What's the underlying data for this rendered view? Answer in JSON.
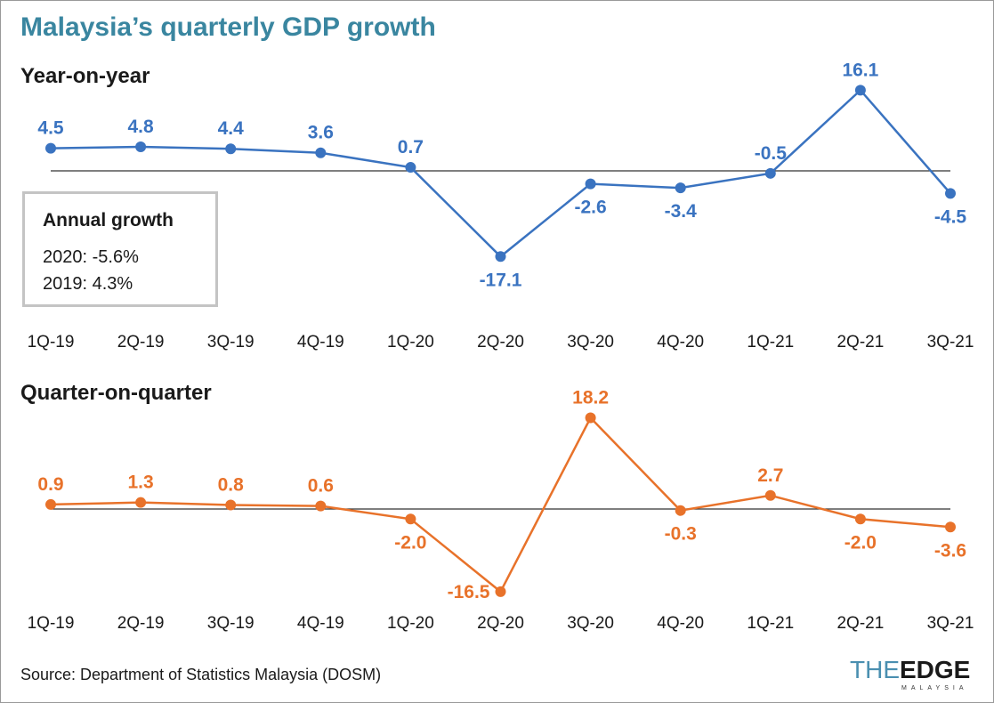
{
  "chart_data": [
    {
      "type": "line",
      "title": "Year-on-year",
      "categories": [
        "1Q-19",
        "2Q-19",
        "3Q-19",
        "4Q-19",
        "1Q-20",
        "2Q-20",
        "3Q-20",
        "4Q-20",
        "1Q-21",
        "2Q-21",
        "3Q-21"
      ],
      "values": [
        4.5,
        4.8,
        4.4,
        3.6,
        0.7,
        -17.1,
        -2.6,
        -3.4,
        -0.5,
        16.1,
        -4.5
      ],
      "labels": [
        "4.5",
        "4.8",
        "4.4",
        "3.6",
        "0.7",
        "-17.1",
        "-2.6",
        "-3.4",
        "-0.5",
        "16.1",
        "-4.5"
      ],
      "color": "#3a73c0",
      "reference_line": 0,
      "grid": false
    },
    {
      "type": "line",
      "title": "Quarter-on-quarter",
      "categories": [
        "1Q-19",
        "2Q-19",
        "3Q-19",
        "4Q-19",
        "1Q-20",
        "2Q-20",
        "3Q-20",
        "4Q-20",
        "1Q-21",
        "2Q-21",
        "3Q-21"
      ],
      "values": [
        0.9,
        1.3,
        0.8,
        0.6,
        -2.0,
        -16.5,
        18.2,
        -0.3,
        2.7,
        -2.0,
        -3.6
      ],
      "labels": [
        "0.9",
        "1.3",
        "0.8",
        "0.6",
        "-2.0",
        "-16.5",
        "18.2",
        "-0.3",
        "2.7",
        "-2.0",
        "-3.6"
      ],
      "color": "#e8722a",
      "reference_line": 0,
      "grid": false
    }
  ],
  "title": "Malaysia’s quarterly GDP growth",
  "annual_box": {
    "heading": "Annual growth",
    "lines": [
      "2020: -5.6%",
      "2019: 4.3%"
    ]
  },
  "source": "Source: Department of Statistics Malaysia (DOSM)",
  "logo": {
    "the": "THE",
    "edge": "EDGE",
    "sub": "MALAYSIA"
  },
  "title_color": "#3a86a0"
}
